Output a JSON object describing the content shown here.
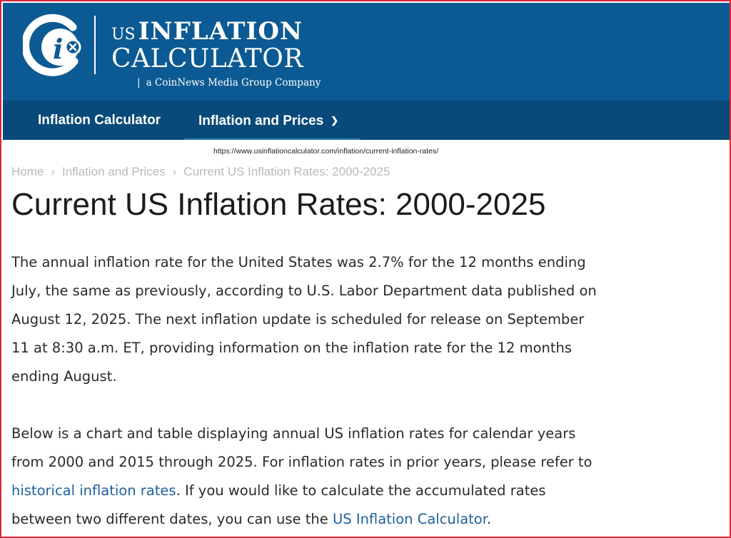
{
  "header": {
    "logo": {
      "us": "US",
      "line1": "INFLATION",
      "line2": "CALCULATOR",
      "tagline_bar": "|",
      "tagline": "a CoinNews Media Group Company",
      "icon": "ci-logo-icon"
    }
  },
  "nav": {
    "items": [
      {
        "label": "Inflation Calculator"
      },
      {
        "label": "Inflation and Prices",
        "icon": "chevron-down-icon"
      }
    ]
  },
  "url_tooltip": "https://www.usinflationcalculator.com/inflation/current-inflation-rates/",
  "breadcrumb": {
    "items": [
      "Home",
      "Inflation and Prices",
      "Current US Inflation Rates: 2000-2025"
    ],
    "separator": "›"
  },
  "page_title": "Current US Inflation Rates: 2000-2025",
  "paragraph1": {
    "lines": [
      "The annual inflation rate for the United States was 2.7% for the 12 months ending",
      "July, the same as previously, according to U.S. Labor Department data published on",
      "August 12, 2025. The next inflation update is scheduled for release on September",
      "11 at 8:30 a.m. ET, providing information on the inflation rate for the 12 months",
      "ending August."
    ]
  },
  "paragraph2": {
    "line1": "Below is a chart and table displaying annual US inflation rates for calendar years",
    "line2": "from 2000 and 2015 through 2025. For inflation rates in prior years, please refer to",
    "line3_link": "historical inflation rates",
    "line3_text": ". If you would like to calculate the accumulated rates",
    "line4_text": "between two different dates, you can use the ",
    "line4_link": "US Inflation Calculator",
    "line4_end": "."
  },
  "colors": {
    "header_bg": "#0c5a93",
    "nav_bg": "#084a79",
    "link": "#1f5f9c",
    "frame_border": "#d8283a"
  }
}
